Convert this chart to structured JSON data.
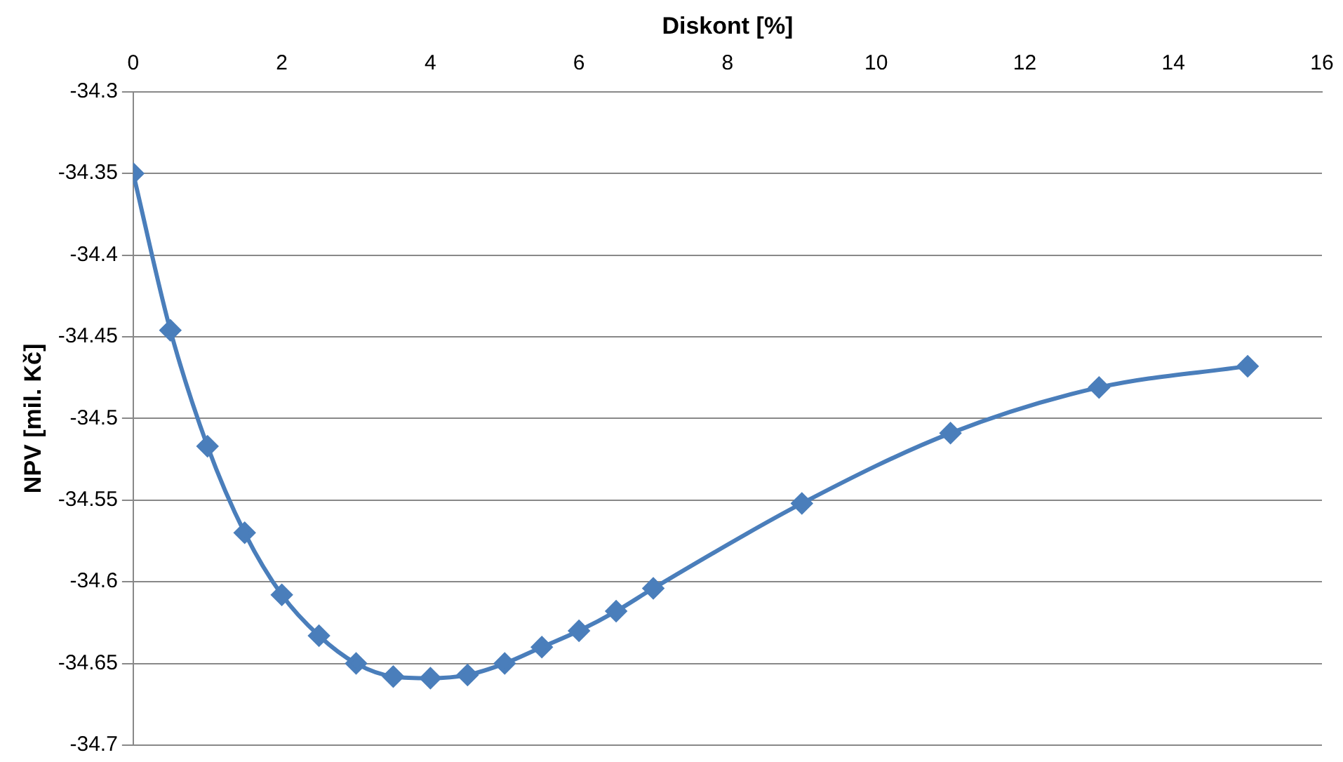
{
  "chart_data": {
    "type": "line",
    "xlabel": "Diskont [%]",
    "ylabel": "NPV [mil. Kč]",
    "x": [
      0,
      0.5,
      1,
      1.5,
      2,
      2.5,
      3,
      3.5,
      4,
      4.5,
      5,
      5.5,
      6,
      6.5,
      7,
      9,
      11,
      13,
      15
    ],
    "series": [
      {
        "color": "#4a7ebb",
        "values": [
          -34.35,
          -34.446,
          -34.517,
          -34.57,
          -34.608,
          -34.633,
          -34.65,
          -34.658,
          -34.659,
          -34.657,
          -34.65,
          -34.64,
          -34.63,
          -34.618,
          -34.604,
          -34.552,
          -34.509,
          -34.481,
          -34.468
        ]
      }
    ],
    "xlim": [
      0,
      16
    ],
    "xticks": [
      0,
      2,
      4,
      6,
      8,
      10,
      12,
      14,
      16
    ],
    "ylim": [
      -34.7,
      -34.3
    ],
    "yticks": [
      -34.7,
      -34.65,
      -34.6,
      -34.55,
      -34.5,
      -34.45,
      -34.4,
      -34.35,
      -34.3
    ],
    "grid": "y",
    "legend": false,
    "marker": "diamond",
    "line_style": "solid"
  }
}
